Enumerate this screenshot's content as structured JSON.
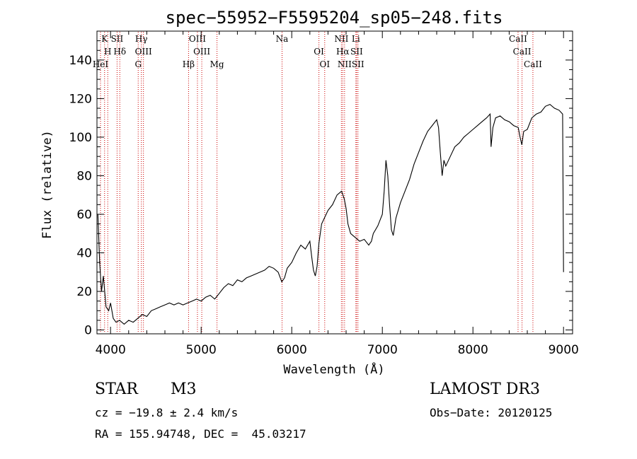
{
  "chart_data": {
    "type": "line",
    "title": "spec−55952−F5595204_sp05−248.fits",
    "xlabel": "Wavelength (Å)",
    "ylabel": "Flux (relative)",
    "xlim": [
      3850,
      9100
    ],
    "ylim": [
      -2,
      155
    ],
    "x_ticks": [
      4000,
      5000,
      6000,
      7000,
      8000,
      9000
    ],
    "y_ticks": [
      0,
      20,
      40,
      60,
      80,
      100,
      120,
      140
    ],
    "series": [
      {
        "name": "flux",
        "x": [
          3860,
          3880,
          3900,
          3920,
          3950,
          3980,
          4000,
          4030,
          4060,
          4100,
          4150,
          4200,
          4250,
          4300,
          4350,
          4400,
          4450,
          4500,
          4550,
          4600,
          4650,
          4700,
          4750,
          4800,
          4850,
          4900,
          4950,
          5000,
          5050,
          5100,
          5150,
          5200,
          5250,
          5300,
          5350,
          5400,
          5450,
          5500,
          5550,
          5600,
          5650,
          5700,
          5750,
          5800,
          5850,
          5890,
          5920,
          5950,
          6000,
          6050,
          6100,
          6150,
          6200,
          6220,
          6240,
          6260,
          6280,
          6300,
          6330,
          6360,
          6400,
          6450,
          6500,
          6550,
          6580,
          6600,
          6620,
          6650,
          6700,
          6750,
          6800,
          6850,
          6880,
          6900,
          6950,
          7000,
          7020,
          7040,
          7060,
          7080,
          7100,
          7120,
          7150,
          7200,
          7250,
          7300,
          7350,
          7400,
          7450,
          7500,
          7550,
          7600,
          7620,
          7640,
          7660,
          7680,
          7700,
          7750,
          7800,
          7850,
          7900,
          7950,
          8000,
          8050,
          8100,
          8150,
          8190,
          8200,
          8220,
          8250,
          8300,
          8350,
          8400,
          8450,
          8500,
          8520,
          8540,
          8560,
          8600,
          8650,
          8700,
          8750,
          8800,
          8850,
          8900,
          8950,
          8990,
          9000
        ],
        "values": [
          60,
          35,
          20,
          28,
          12,
          10,
          14,
          6,
          4,
          5,
          3,
          5,
          4,
          6,
          8,
          7,
          10,
          11,
          12,
          13,
          14,
          13,
          14,
          13,
          14,
          15,
          16,
          15,
          17,
          18,
          16,
          19,
          22,
          24,
          23,
          26,
          25,
          27,
          28,
          29,
          30,
          31,
          33,
          32,
          30,
          25,
          27,
          32,
          35,
          40,
          44,
          42,
          46,
          38,
          31,
          28,
          33,
          45,
          55,
          58,
          62,
          65,
          70,
          72,
          68,
          63,
          55,
          50,
          48,
          46,
          47,
          44,
          46,
          50,
          54,
          60,
          72,
          88,
          80,
          65,
          52,
          49,
          58,
          66,
          72,
          78,
          86,
          92,
          98,
          103,
          106,
          109,
          105,
          92,
          80,
          88,
          85,
          90,
          95,
          97,
          100,
          102,
          104,
          106,
          108,
          110,
          112,
          95,
          105,
          110,
          111,
          109,
          108,
          106,
          105,
          100,
          96,
          103,
          104,
          110,
          112,
          113,
          116,
          117,
          115,
          114,
          112,
          30
        ]
      }
    ],
    "spectral_lines": [
      {
        "wavelength": 3934,
        "labels": [
          "K"
        ]
      },
      {
        "wavelength": 3969,
        "labels": [
          "H"
        ]
      },
      {
        "wavelength": 3889,
        "labels": [
          "HeI"
        ]
      },
      {
        "wavelength": 4072,
        "labels": [
          "SII"
        ]
      },
      {
        "wavelength": 4102,
        "labels": [
          "Hδ"
        ]
      },
      {
        "wavelength": 4305,
        "labels": [
          "G"
        ]
      },
      {
        "wavelength": 4340,
        "labels": [
          "Hγ"
        ]
      },
      {
        "wavelength": 4363,
        "labels": [
          "OIII"
        ]
      },
      {
        "wavelength": 4861,
        "labels": [
          "Hβ"
        ]
      },
      {
        "wavelength": 4959,
        "labels": [
          "OIII"
        ]
      },
      {
        "wavelength": 5007,
        "labels": [
          "OIII"
        ]
      },
      {
        "wavelength": 5175,
        "labels": [
          "Mg"
        ]
      },
      {
        "wavelength": 5893,
        "labels": [
          "Na"
        ]
      },
      {
        "wavelength": 6300,
        "labels": [
          "OI"
        ]
      },
      {
        "wavelength": 6364,
        "labels": [
          "OI"
        ]
      },
      {
        "wavelength": 6548,
        "labels": [
          "NII"
        ]
      },
      {
        "wavelength": 6563,
        "labels": [
          "Hα"
        ]
      },
      {
        "wavelength": 6583,
        "labels": [
          "NII"
        ]
      },
      {
        "wavelength": 6708,
        "labels": [
          "Li"
        ]
      },
      {
        "wavelength": 6716,
        "labels": [
          "SII"
        ]
      },
      {
        "wavelength": 6731,
        "labels": [
          "SII"
        ]
      },
      {
        "wavelength": 8498,
        "labels": [
          "CaII"
        ]
      },
      {
        "wavelength": 8542,
        "labels": [
          "CaII"
        ]
      },
      {
        "wavelength": 8662,
        "labels": [
          "CaII"
        ]
      }
    ],
    "line_color": "#000000",
    "marker_color": "#cc0000"
  },
  "info": {
    "object_class": "STAR",
    "subclass": "M3",
    "survey": "LAMOST DR3",
    "redshift": "cz = −19.8 ± 2.4 km/s",
    "obs_date": "Obs−Date: 20120125",
    "coordinates": "RA = 155.94748, DEC =  45.03217"
  }
}
